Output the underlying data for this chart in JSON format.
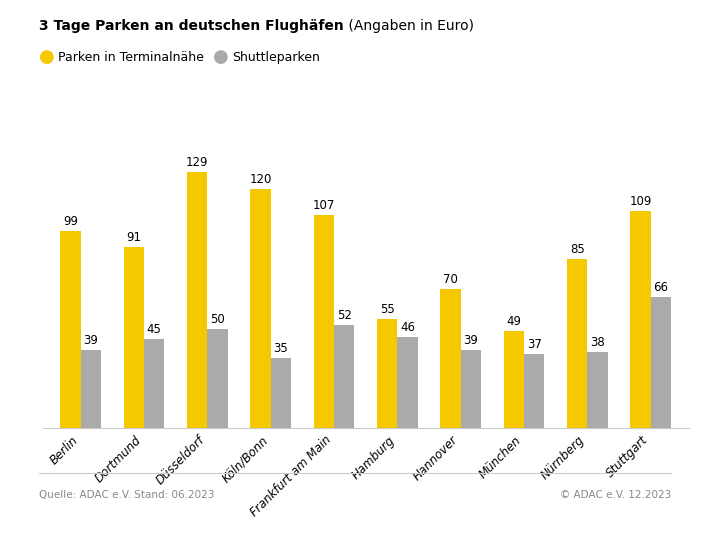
{
  "title_bold": "3 Tage Parken an deutschen Flughäfen",
  "title_normal": " (Angaben in Euro)",
  "legend_yellow": "Parken in Terminalnähe",
  "legend_gray": "Shuttleparken",
  "categories": [
    "Berlin",
    "Dortmund",
    "Düsseldorf",
    "Köln/Bonn",
    "Frankfurt am Main",
    "Hamburg",
    "Hannover",
    "München",
    "Nürnberg",
    "Stuttgart"
  ],
  "yellow_values": [
    99,
    91,
    129,
    120,
    107,
    55,
    70,
    49,
    85,
    109
  ],
  "gray_values": [
    39,
    45,
    50,
    35,
    52,
    46,
    39,
    37,
    38,
    66
  ],
  "yellow_color": "#F5C800",
  "gray_color": "#AAAAAA",
  "background_color": "#FFFFFF",
  "footer_left": "Quelle: ADAC e.V. Stand: 06.2023",
  "footer_right": "© ADAC e.V. 12.2023",
  "ylim": [
    0,
    148
  ],
  "bar_width": 0.32,
  "figsize": [
    7.1,
    5.35
  ],
  "dpi": 100
}
